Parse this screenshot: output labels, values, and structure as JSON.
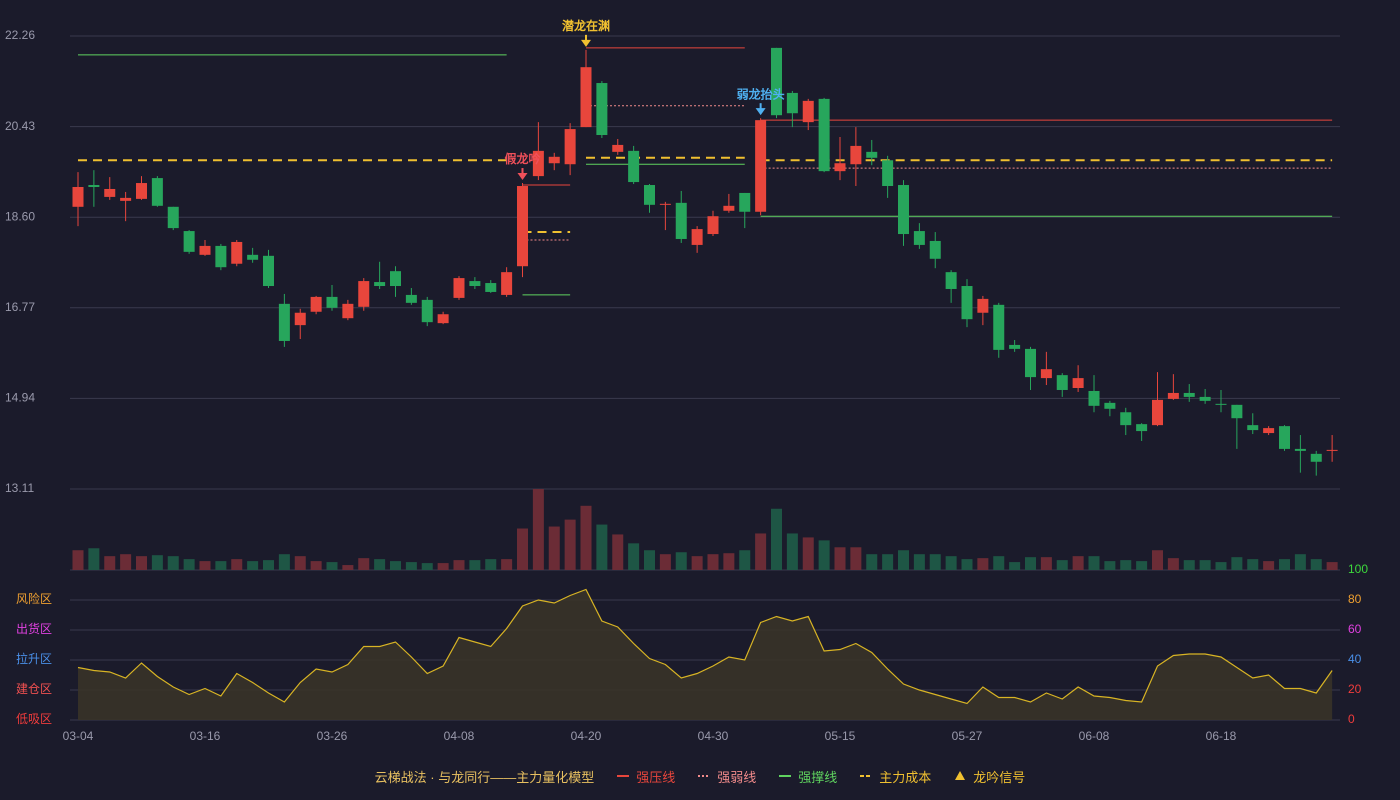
{
  "chart_data": {
    "type": "candlestick",
    "categories": [
      "03-04",
      null,
      null,
      null,
      null,
      null,
      null,
      null,
      "03-16",
      null,
      null,
      null,
      null,
      null,
      null,
      null,
      "03-26",
      null,
      null,
      null,
      null,
      null,
      null,
      null,
      "04-08",
      null,
      null,
      null,
      null,
      null,
      null,
      null,
      "04-20",
      null,
      null,
      null,
      null,
      null,
      null,
      null,
      "04-30",
      null,
      null,
      null,
      null,
      null,
      null,
      null,
      "05-15",
      null,
      null,
      null,
      null,
      null,
      null,
      null,
      "05-27",
      null,
      null,
      null,
      null,
      null,
      null,
      null,
      "06-08",
      null,
      null,
      null,
      null,
      null,
      null,
      null,
      "06-18",
      null,
      null,
      null,
      null,
      null,
      null,
      null
    ],
    "open": [
      18.81,
      19.25,
      19.01,
      18.93,
      18.97,
      19.39,
      18.81,
      18.32,
      17.84,
      18.02,
      17.66,
      17.84,
      17.82,
      16.85,
      16.42,
      16.69,
      16.99,
      16.56,
      16.79,
      17.29,
      17.51,
      17.03,
      16.93,
      16.46,
      16.97,
      17.31,
      17.27,
      17.03,
      17.61,
      19.43,
      19.69,
      19.67,
      20.42,
      21.31,
      19.92,
      19.94,
      19.25,
      18.85,
      18.89,
      18.04,
      18.26,
      18.73,
      19.09,
      18.71,
      22.02,
      21.11,
      20.52,
      20.99,
      19.53,
      19.67,
      19.92,
      19.75,
      19.25,
      18.32,
      18.12,
      17.49,
      17.21,
      16.67,
      16.83,
      16.02,
      15.94,
      15.35,
      15.41,
      15.15,
      15.09,
      14.85,
      14.66,
      14.42,
      14.4,
      14.93,
      15.05,
      14.97,
      14.83,
      14.81,
      14.4,
      14.24,
      14.38,
      13.92,
      13.82,
      13.88
    ],
    "high": [
      19.51,
      19.55,
      19.41,
      19.11,
      19.43,
      19.43,
      18.81,
      18.34,
      18.14,
      18.06,
      18.14,
      17.98,
      17.94,
      17.05,
      16.75,
      17.01,
      17.23,
      16.93,
      17.37,
      17.7,
      17.61,
      17.17,
      16.99,
      16.69,
      17.41,
      17.39,
      17.33,
      17.59,
      19.29,
      20.52,
      19.9,
      20.5,
      21.98,
      21.35,
      20.18,
      20.04,
      19.27,
      18.91,
      19.13,
      18.42,
      18.73,
      19.07,
      19.09,
      20.6,
      22.02,
      21.15,
      20.99,
      21.01,
      20.22,
      20.42,
      20.16,
      19.84,
      19.35,
      18.48,
      18.3,
      17.53,
      17.35,
      17.01,
      16.87,
      16.12,
      15.98,
      15.88,
      15.45,
      15.61,
      15.41,
      14.89,
      14.75,
      14.44,
      15.47,
      15.43,
      15.23,
      15.13,
      15.11,
      14.81,
      14.64,
      14.38,
      14.4,
      14.2,
      13.88,
      14.2
    ],
    "low": [
      18.42,
      18.81,
      18.95,
      18.52,
      18.95,
      18.81,
      18.34,
      17.86,
      17.82,
      17.53,
      17.61,
      17.68,
      17.17,
      15.98,
      16.14,
      16.64,
      16.71,
      16.52,
      16.71,
      17.15,
      16.99,
      16.83,
      16.4,
      16.44,
      16.93,
      17.15,
      17.07,
      16.99,
      17.39,
      19.35,
      19.55,
      19.45,
      20.42,
      20.2,
      19.86,
      19.27,
      18.69,
      18.34,
      18.08,
      17.88,
      18.22,
      18.69,
      18.38,
      18.64,
      20.6,
      20.42,
      20.36,
      19.51,
      19.35,
      19.23,
      19.65,
      18.99,
      18.02,
      17.96,
      17.57,
      16.87,
      16.38,
      16.42,
      15.76,
      15.88,
      15.11,
      15.21,
      14.97,
      15.07,
      14.66,
      14.58,
      14.2,
      14.08,
      14.38,
      14.91,
      14.87,
      14.83,
      14.66,
      13.92,
      14.22,
      14.2,
      13.88,
      13.44,
      13.38,
      13.66
    ],
    "close": [
      19.21,
      19.21,
      19.17,
      18.99,
      19.29,
      18.83,
      18.38,
      17.9,
      18.02,
      17.59,
      18.1,
      17.74,
      17.21,
      16.1,
      16.67,
      16.99,
      16.77,
      16.85,
      17.31,
      17.21,
      17.21,
      16.87,
      16.48,
      16.64,
      17.37,
      17.21,
      17.09,
      17.49,
      19.23,
      19.94,
      19.82,
      20.38,
      21.63,
      20.26,
      20.06,
      19.31,
      18.85,
      18.87,
      18.16,
      18.36,
      18.62,
      18.83,
      18.71,
      20.56,
      20.66,
      20.7,
      20.95,
      19.53,
      19.69,
      20.04,
      19.8,
      19.23,
      18.26,
      18.04,
      17.76,
      17.15,
      16.54,
      16.95,
      15.92,
      15.94,
      15.37,
      15.53,
      15.11,
      15.35,
      14.79,
      14.73,
      14.4,
      14.28,
      14.91,
      15.05,
      14.97,
      14.89,
      14.81,
      14.54,
      14.3,
      14.34,
      13.92,
      13.88,
      13.66,
      13.9
    ],
    "up_color": "#e8463c",
    "down_color": "#27a65c",
    "ylim": [
      13.11,
      22.26
    ],
    "yticks": [
      13.11,
      14.94,
      16.77,
      {
        "value": 18.6,
        "label": "18.60"
      },
      20.43,
      22.26
    ],
    "grid": true,
    "volume": {
      "values": [
        20,
        22,
        14,
        16,
        14,
        15,
        14,
        11,
        9,
        9,
        11,
        9,
        10,
        16,
        14,
        9,
        8,
        5,
        12,
        11,
        9,
        8,
        7,
        7,
        10,
        10,
        11,
        11,
        42,
        82,
        44,
        51,
        65,
        46,
        36,
        27,
        20,
        16,
        18,
        14,
        16,
        17,
        20,
        37,
        62,
        37,
        33,
        30,
        23,
        23,
        16,
        16,
        20,
        16,
        16,
        14,
        11,
        12,
        14,
        8,
        13,
        13,
        10,
        14,
        14,
        9,
        10,
        9,
        20,
        12,
        10,
        10,
        8,
        13,
        11,
        9,
        11,
        16,
        11,
        8
      ],
      "up_color": "#6b2c36",
      "down_color": "#1e5645"
    },
    "level_lines": [
      {
        "name": "强压线",
        "color": "#e8463c",
        "style": "solid",
        "segments": [
          {
            "start": 28,
            "end": 31,
            "value": 19.25
          },
          {
            "start": 32,
            "end": 42,
            "value": 22.02
          },
          {
            "start": 43,
            "end": 79,
            "value": 20.56
          }
        ]
      },
      {
        "name": "强弱线",
        "color": "#f08a8a",
        "style": "dotted",
        "segments": [
          {
            "start": 28,
            "end": 31,
            "value": 18.14
          },
          {
            "start": 32,
            "end": 42,
            "value": 20.85
          },
          {
            "start": 43,
            "end": 79,
            "value": 19.59
          }
        ]
      },
      {
        "name": "强撑线",
        "color": "#5fd35f",
        "style": "solid",
        "segments": [
          {
            "start": 0,
            "end": 27,
            "value": 21.88
          },
          {
            "start": 28,
            "end": 31,
            "value": 17.03
          },
          {
            "start": 32,
            "end": 42,
            "value": 19.67
          },
          {
            "start": 43,
            "end": 79,
            "value": 18.62
          }
        ]
      },
      {
        "name": "主力成本",
        "color": "#f0c030",
        "style": "dashed",
        "segments": [
          {
            "start": 0,
            "end": 27,
            "value": 19.75
          },
          {
            "start": 28,
            "end": 31,
            "value": 18.3
          },
          {
            "start": 32,
            "end": 42,
            "value": 19.8
          },
          {
            "start": 43,
            "end": 79,
            "value": 19.75
          }
        ]
      }
    ],
    "signals": {
      "name": "龙吟信号",
      "color": "#f0c030",
      "points": [
        {
          "label": "假龙吟",
          "index": 28,
          "color": "#f0505a"
        },
        {
          "label": "潜龙在渊",
          "index": 32,
          "color": "#f0c030"
        },
        {
          "label": "弱龙抬头",
          "index": 43,
          "color": "#4fb0f0"
        }
      ]
    },
    "oscillator": {
      "values": [
        35,
        33,
        32,
        28,
        38,
        29,
        22,
        17,
        21,
        16,
        31,
        25,
        18,
        12,
        25,
        34,
        32,
        37,
        49,
        49,
        52,
        42,
        31,
        36,
        55,
        52,
        49,
        61,
        76,
        80,
        78,
        83,
        87,
        66,
        62,
        51,
        41,
        37,
        28,
        31,
        36,
        42,
        40,
        65,
        69,
        66,
        69,
        46,
        47,
        51,
        45,
        34,
        24,
        20,
        17,
        14,
        11,
        22,
        15,
        15,
        12,
        18,
        14,
        22,
        16,
        15,
        13,
        12,
        36,
        43,
        44,
        44,
        42,
        35,
        28,
        30,
        21,
        21,
        18,
        33
      ],
      "color": "#d8b424",
      "ylim": [
        0,
        100
      ],
      "yticks": [
        0,
        20,
        40,
        60,
        80,
        100
      ],
      "ytick_colors": [
        "#f03c3c",
        "#f03c3c",
        "#4a8fe8",
        "#e040e0",
        "#f0a030",
        "#3cd83c"
      ],
      "zones": [
        {
          "label": "风险区",
          "value": 80,
          "color": "#f0a030"
        },
        {
          "label": "出货区",
          "value": 60,
          "color": "#e040e0"
        },
        {
          "label": "拉升区",
          "value": 40,
          "color": "#4a8fe8"
        },
        {
          "label": "建仓区",
          "value": 20,
          "color": "#f05050"
        },
        {
          "label": "低吸区",
          "value": 0,
          "color": "#f03c3c"
        }
      ]
    },
    "legend_title": "云梯战法 · 与龙同行——主力量化模型"
  }
}
